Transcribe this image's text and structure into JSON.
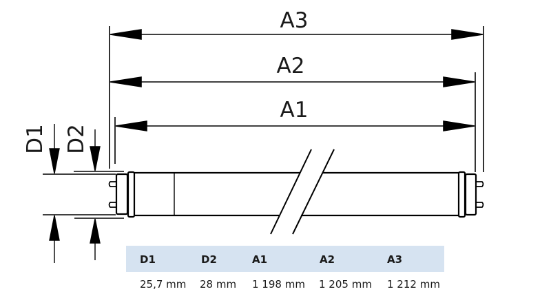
{
  "dimension_labels": {
    "a3": "A3",
    "a2": "A2",
    "a1": "A1",
    "d1": "D1",
    "d2": "D2"
  },
  "table": {
    "header_bg": "#d6e3f1",
    "headers": [
      "D1",
      "D2",
      "A1",
      "A2",
      "A3"
    ],
    "values": [
      "25,7 mm",
      "28 mm",
      "1 198 mm",
      "1 205 mm",
      "1 212 mm"
    ]
  }
}
